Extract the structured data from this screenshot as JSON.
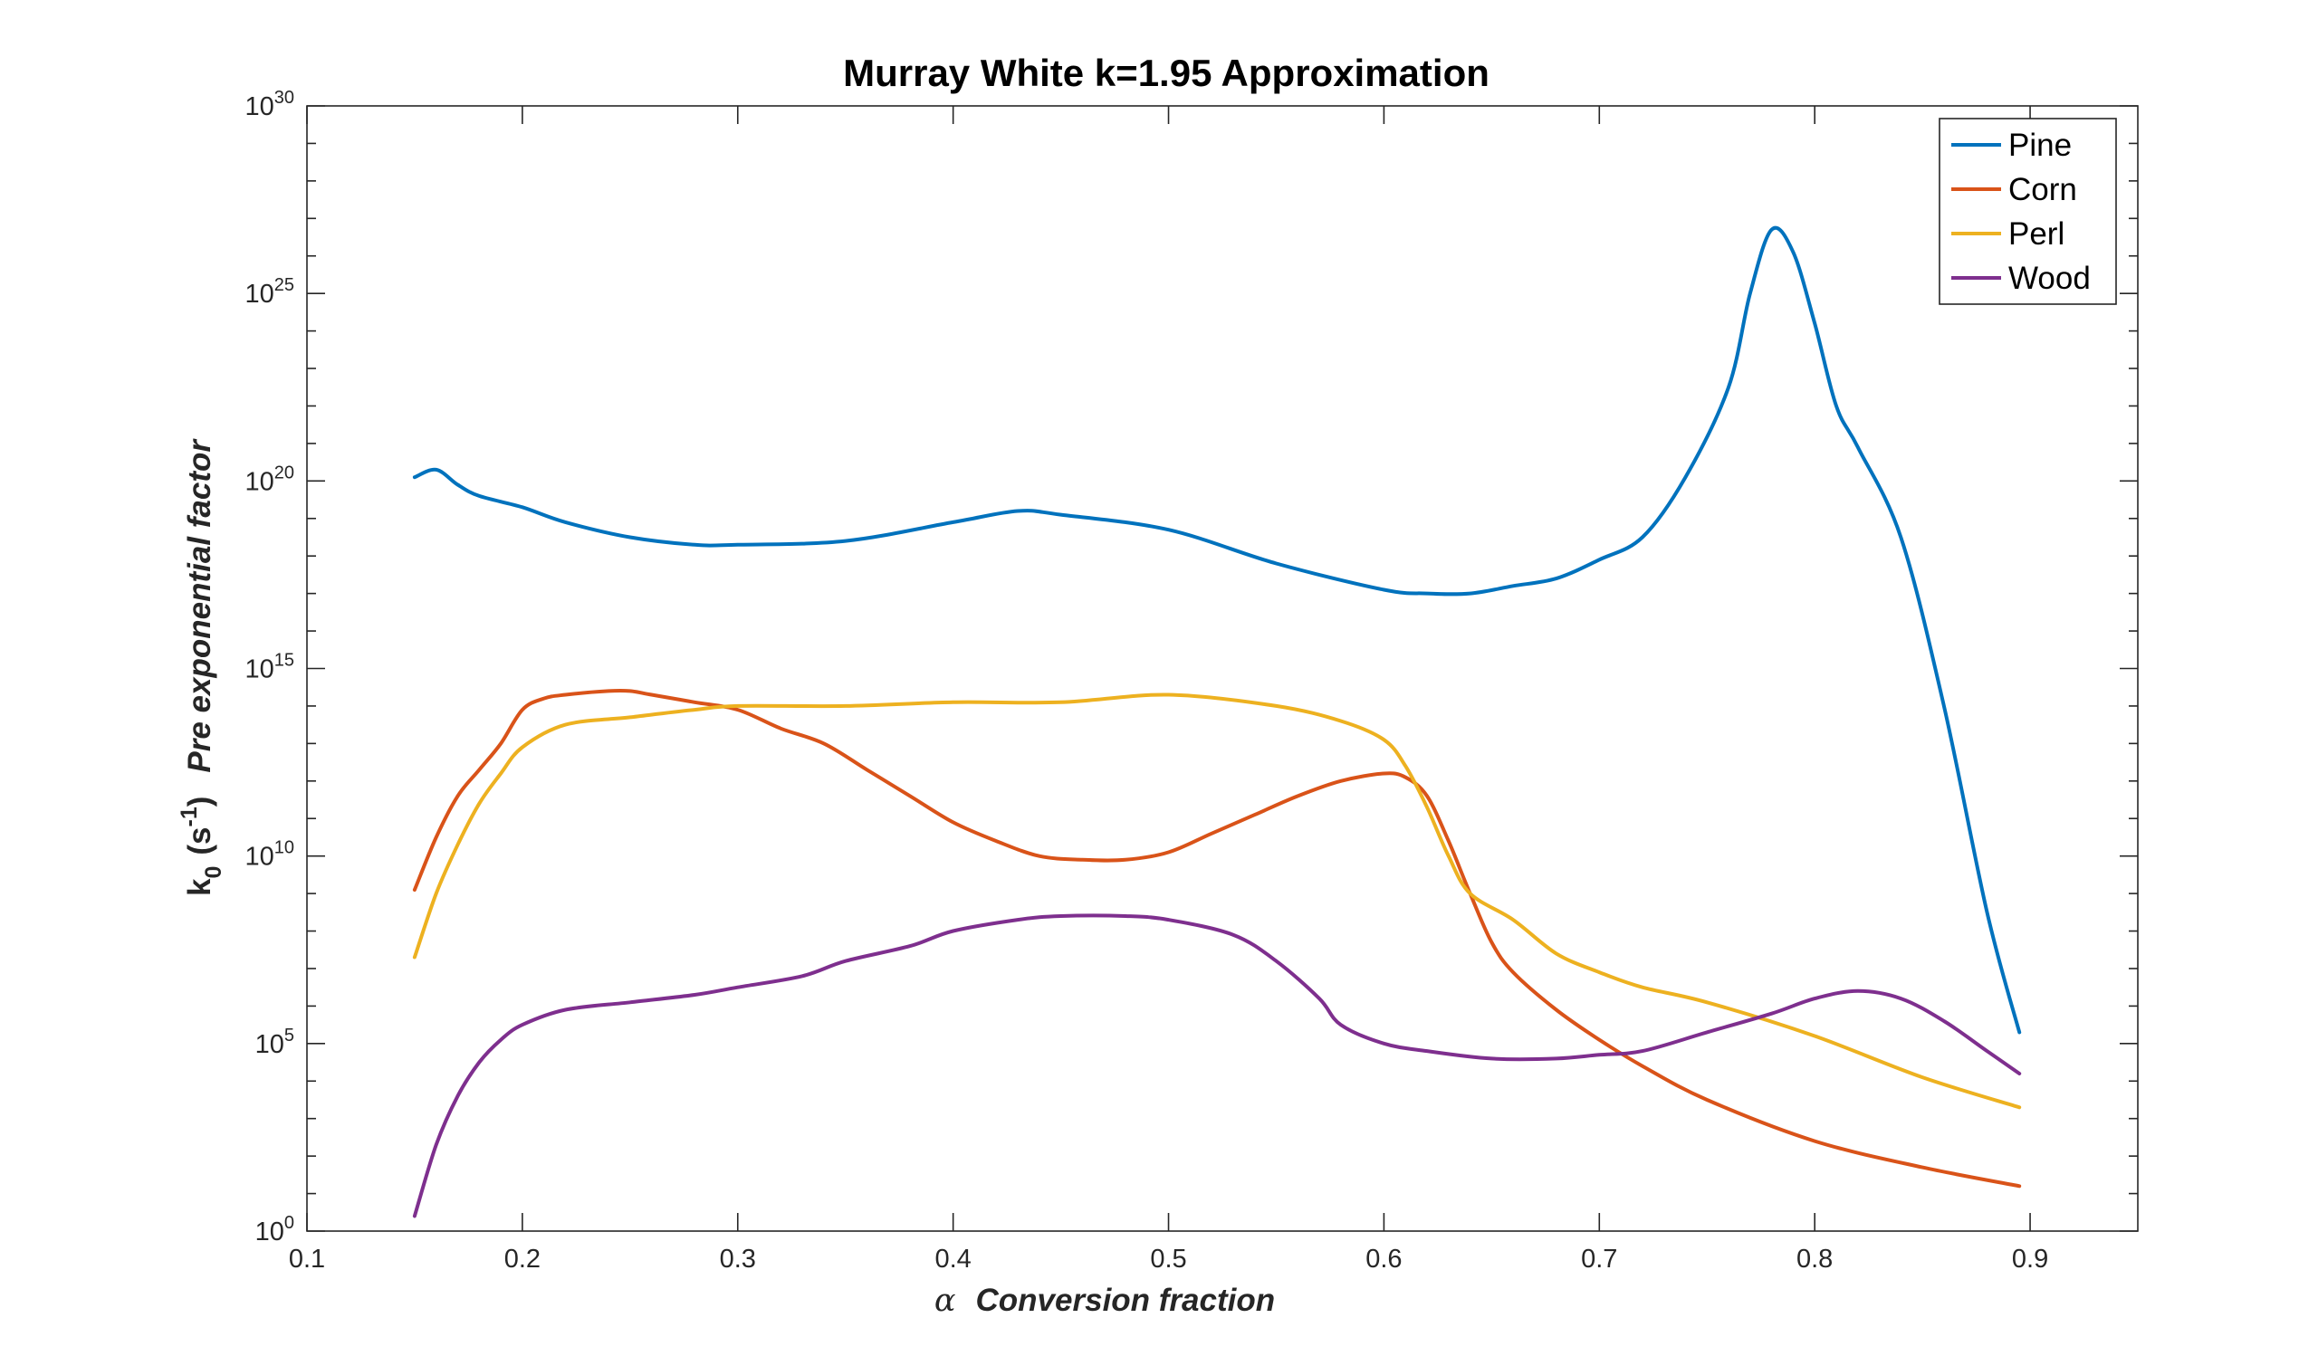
{
  "chart_data": {
    "type": "line",
    "title": "Murray White k=1.95 Approximation",
    "xlabel_symbol": "α",
    "xlabel": "Conversion fraction",
    "ylabel_main": "k",
    "ylabel_sub": "0",
    "ylabel_unit_open": "(s",
    "ylabel_unit_exp": "-1",
    "ylabel_unit_close": ")",
    "ylabel_desc": "Pre exponential factor",
    "xlim": [
      0.1,
      0.95
    ],
    "ylim_log10": [
      0,
      30
    ],
    "y_scale": "log",
    "x_ticks": [
      0.1,
      0.2,
      0.3,
      0.4,
      0.5,
      0.6,
      0.7,
      0.8,
      0.9
    ],
    "x_tick_labels": [
      "0.1",
      "0.2",
      "0.3",
      "0.4",
      "0.5",
      "0.6",
      "0.7",
      "0.8",
      "0.9"
    ],
    "y_ticks_log10": [
      0,
      5,
      10,
      15,
      20,
      25,
      30
    ],
    "y_tick_base": "10",
    "y_tick_exponents": [
      "0",
      "5",
      "10",
      "15",
      "20",
      "25",
      "30"
    ],
    "legend_position": "top-right",
    "grid": false,
    "series": [
      {
        "name": "Pine",
        "color": "#0072BD",
        "x": [
          0.15,
          0.16,
          0.17,
          0.18,
          0.2,
          0.22,
          0.25,
          0.28,
          0.3,
          0.35,
          0.4,
          0.43,
          0.45,
          0.5,
          0.55,
          0.6,
          0.62,
          0.64,
          0.66,
          0.68,
          0.7,
          0.72,
          0.74,
          0.76,
          0.77,
          0.78,
          0.79,
          0.8,
          0.81,
          0.82,
          0.84,
          0.86,
          0.88,
          0.895
        ],
        "y_log10": [
          20.1,
          20.3,
          19.9,
          19.6,
          19.3,
          18.9,
          18.5,
          18.3,
          18.3,
          18.4,
          18.9,
          19.2,
          19.1,
          18.7,
          17.8,
          17.1,
          17.0,
          17.0,
          17.2,
          17.4,
          17.9,
          18.5,
          20.1,
          22.5,
          25.0,
          26.7,
          26.1,
          24.2,
          22.0,
          20.9,
          18.5,
          14.0,
          8.5,
          5.3
        ]
      },
      {
        "name": "Corn",
        "color": "#D95319",
        "x": [
          0.15,
          0.16,
          0.17,
          0.18,
          0.19,
          0.2,
          0.21,
          0.22,
          0.24,
          0.25,
          0.26,
          0.28,
          0.3,
          0.32,
          0.34,
          0.36,
          0.38,
          0.4,
          0.42,
          0.44,
          0.46,
          0.48,
          0.5,
          0.52,
          0.54,
          0.56,
          0.58,
          0.6,
          0.61,
          0.62,
          0.63,
          0.64,
          0.65,
          0.66,
          0.68,
          0.7,
          0.72,
          0.75,
          0.8,
          0.85,
          0.895
        ],
        "y_log10": [
          9.1,
          10.5,
          11.6,
          12.3,
          13.0,
          13.9,
          14.2,
          14.3,
          14.4,
          14.4,
          14.3,
          14.1,
          13.9,
          13.4,
          13.0,
          12.3,
          11.6,
          10.9,
          10.4,
          10.0,
          9.9,
          9.9,
          10.1,
          10.6,
          11.1,
          11.6,
          12.0,
          12.2,
          12.1,
          11.6,
          10.4,
          9.0,
          7.7,
          6.9,
          5.9,
          5.1,
          4.4,
          3.5,
          2.4,
          1.7,
          1.2
        ]
      },
      {
        "name": "Perl",
        "color": "#EDB120",
        "x": [
          0.15,
          0.16,
          0.17,
          0.18,
          0.19,
          0.2,
          0.22,
          0.25,
          0.28,
          0.3,
          0.35,
          0.4,
          0.45,
          0.5,
          0.55,
          0.58,
          0.6,
          0.61,
          0.62,
          0.63,
          0.64,
          0.66,
          0.68,
          0.7,
          0.72,
          0.75,
          0.8,
          0.85,
          0.895
        ],
        "y_log10": [
          7.3,
          9.0,
          10.3,
          11.4,
          12.2,
          12.9,
          13.5,
          13.7,
          13.9,
          14.0,
          14.0,
          14.1,
          14.1,
          14.3,
          14.0,
          13.6,
          13.1,
          12.4,
          11.3,
          10.0,
          9.0,
          8.3,
          7.4,
          6.9,
          6.5,
          6.1,
          5.2,
          4.1,
          3.3
        ]
      },
      {
        "name": "Wood",
        "color": "#7E2F8E",
        "x": [
          0.15,
          0.16,
          0.17,
          0.18,
          0.19,
          0.2,
          0.22,
          0.25,
          0.28,
          0.3,
          0.33,
          0.35,
          0.38,
          0.4,
          0.43,
          0.45,
          0.48,
          0.5,
          0.53,
          0.55,
          0.57,
          0.58,
          0.6,
          0.62,
          0.65,
          0.68,
          0.7,
          0.72,
          0.75,
          0.78,
          0.8,
          0.82,
          0.84,
          0.86,
          0.88,
          0.895
        ],
        "y_log10": [
          0.4,
          2.3,
          3.6,
          4.5,
          5.1,
          5.5,
          5.9,
          6.1,
          6.3,
          6.5,
          6.8,
          7.2,
          7.6,
          8.0,
          8.3,
          8.4,
          8.4,
          8.3,
          7.9,
          7.2,
          6.2,
          5.5,
          5.0,
          4.8,
          4.6,
          4.6,
          4.7,
          4.8,
          5.3,
          5.8,
          6.2,
          6.4,
          6.2,
          5.6,
          4.8,
          4.2
        ]
      }
    ]
  }
}
